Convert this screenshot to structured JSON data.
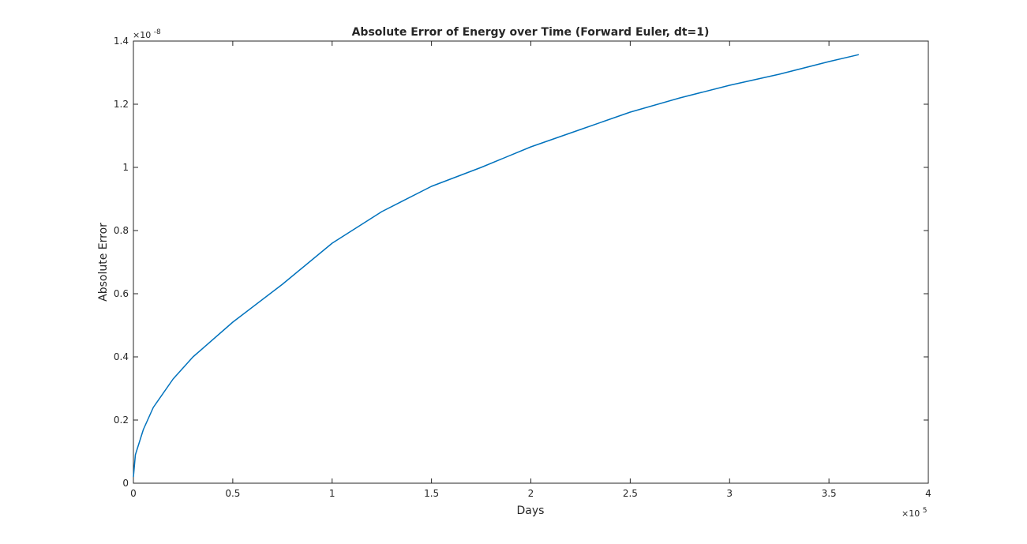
{
  "chart_data": {
    "type": "line",
    "title": "Absolute Error of Energy over Time (Forward Euler, dt=1)",
    "xlabel": "Days",
    "ylabel": "Absolute Error",
    "x_multiplier": "10",
    "x_multiplier_exp": "5",
    "y_multiplier": "10",
    "y_multiplier_exp": "-8",
    "xlim": [
      0,
      4
    ],
    "ylim": [
      0,
      1.4
    ],
    "xticks": [
      0,
      0.5,
      1,
      1.5,
      2,
      2.5,
      3,
      3.5,
      4
    ],
    "xtick_labels": [
      "0",
      "0.5",
      "1",
      "1.5",
      "2",
      "2.5",
      "3",
      "3.5",
      "4"
    ],
    "yticks": [
      0,
      0.2,
      0.4,
      0.6,
      0.8,
      1.0,
      1.2,
      1.4
    ],
    "ytick_labels": [
      "0",
      "0.2",
      "0.4",
      "0.6",
      "0.8",
      "1",
      "1.2",
      "1.4"
    ],
    "grid": false,
    "box": true,
    "line_color": "#0072bd",
    "axis_color": "#262626",
    "series": [
      {
        "x": [
          0,
          0.01,
          0.05,
          0.1,
          0.2,
          0.3,
          0.5,
          0.75,
          1.0,
          1.25,
          1.5,
          1.75,
          2.0,
          2.25,
          2.5,
          2.75,
          3.0,
          3.25,
          3.5,
          3.65
        ],
        "y": [
          0.02,
          0.09,
          0.17,
          0.24,
          0.33,
          0.4,
          0.51,
          0.63,
          0.76,
          0.86,
          0.94,
          1.0,
          1.065,
          1.12,
          1.175,
          1.22,
          1.26,
          1.295,
          1.335,
          1.357
        ]
      }
    ]
  }
}
